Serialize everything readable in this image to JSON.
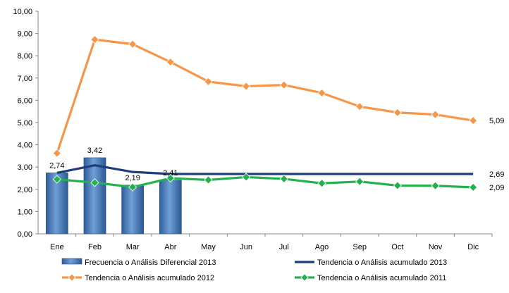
{
  "chart_data": {
    "type": "bar+line",
    "categories": [
      "Ene",
      "Feb",
      "Mar",
      "Abr",
      "May",
      "Jun",
      "Jul",
      "Ago",
      "Sep",
      "Oct",
      "Nov",
      "Dic"
    ],
    "ylim": [
      0,
      10
    ],
    "yticks": [
      "0,00",
      "1,00",
      "2,00",
      "3,00",
      "4,00",
      "5,00",
      "6,00",
      "7,00",
      "8,00",
      "9,00",
      "10,00"
    ],
    "grid": false,
    "legend_position": "bottom",
    "series": [
      {
        "name": "Frecuencia o Análisis Diferencial 2013",
        "kind": "bar",
        "color": "#4a7ebb",
        "values": [
          2.74,
          3.42,
          2.19,
          2.41,
          null,
          null,
          null,
          null,
          null,
          null,
          null,
          null
        ],
        "labels": [
          "2,74",
          "3,42",
          "2,19",
          "2,41",
          "",
          "",
          "",
          "",
          "",
          "",
          "",
          ""
        ]
      },
      {
        "name": "Tendencia o Análisis acumulado 2013",
        "kind": "line",
        "color": "#1f3d7a",
        "marker": "none",
        "values": [
          2.74,
          3.08,
          2.78,
          2.69,
          2.69,
          2.69,
          2.69,
          2.69,
          2.69,
          2.69,
          2.69,
          2.69
        ],
        "end_label": "2,69"
      },
      {
        "name": "Tendencia o Análisis acumulado 2012",
        "kind": "line",
        "color": "#f79646",
        "marker": "diamond",
        "values": [
          3.62,
          8.73,
          8.52,
          7.72,
          6.84,
          6.63,
          6.69,
          6.33,
          5.72,
          5.45,
          5.36,
          5.09
        ],
        "end_label": "5,09"
      },
      {
        "name": "Tendencia o Análisis acumulado 2011",
        "kind": "line",
        "color": "#22b14c",
        "marker": "diamond",
        "values": [
          2.45,
          2.3,
          2.1,
          2.5,
          2.42,
          2.55,
          2.47,
          2.27,
          2.35,
          2.17,
          2.16,
          2.09
        ],
        "end_label": "2,09"
      }
    ]
  }
}
